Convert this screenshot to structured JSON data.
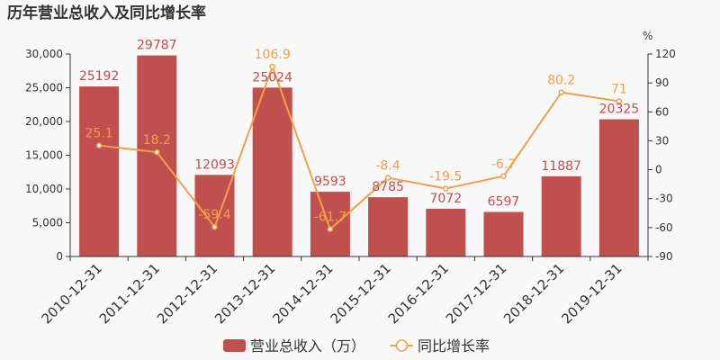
{
  "colors": {
    "bar": "#c0504d",
    "line": "#f0a04b",
    "axis": "#333333"
  },
  "chart_data": {
    "type": "bar",
    "title": "历年营业总收入及同比增长率",
    "categories": [
      "2010-12-31",
      "2011-12-31",
      "2012-12-31",
      "2013-12-31",
      "2014-12-31",
      "2015-12-31",
      "2016-12-31",
      "2017-12-31",
      "2018-12-31",
      "2019-12-31"
    ],
    "series": [
      {
        "name": "营业总收入（万）",
        "type": "bar",
        "axis": "left",
        "values": [
          25192,
          29787,
          12093,
          25024,
          9593,
          8785,
          7072,
          6597,
          11887,
          20325
        ]
      },
      {
        "name": "同比增长率",
        "type": "line",
        "axis": "right",
        "values": [
          25.1,
          18.2,
          -59.4,
          106.9,
          -61.7,
          -8.4,
          -19.5,
          -6.7,
          80.2,
          71
        ]
      }
    ],
    "y_left": {
      "ylim": [
        0,
        30000
      ],
      "ticks": [
        0,
        5000,
        10000,
        15000,
        20000,
        25000,
        30000
      ],
      "tick_labels": [
        "0",
        "5,000",
        "10,000",
        "15,000",
        "20,000",
        "25,000",
        "30,000"
      ]
    },
    "y_right": {
      "unit": "%",
      "ylim": [
        -90,
        120
      ],
      "ticks": [
        -90,
        -60,
        -30,
        0,
        30,
        60,
        90,
        120
      ],
      "tick_labels": [
        "-90",
        "-60",
        "-30",
        "0",
        "30",
        "60",
        "90",
        "120"
      ]
    },
    "grid": false,
    "legend": "bottom-center"
  }
}
